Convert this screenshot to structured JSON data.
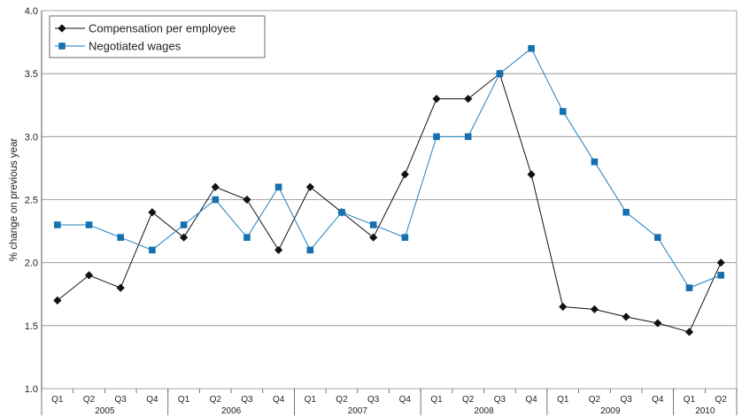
{
  "chart_data": {
    "type": "line",
    "ylabel": "% change on previous year",
    "ylim": [
      1.0,
      4.0
    ],
    "yticks": [
      1.0,
      1.5,
      2.0,
      2.5,
      3.0,
      3.5,
      4.0
    ],
    "ytick_labels": [
      "1.0",
      "1.5",
      "2.0",
      "2.5",
      "3.0",
      "3.5",
      "4.0"
    ],
    "grid": "horizontal",
    "legend_position": "top-left",
    "categories": [
      "Q1",
      "Q2",
      "Q3",
      "Q4",
      "Q1",
      "Q2",
      "Q3",
      "Q4",
      "Q1",
      "Q2",
      "Q3",
      "Q4",
      "Q1",
      "Q2",
      "Q3",
      "Q4",
      "Q1",
      "Q2",
      "Q3",
      "Q4",
      "Q1",
      "Q2"
    ],
    "year_groups": [
      {
        "label": "2005",
        "count": 4
      },
      {
        "label": "2006",
        "count": 4
      },
      {
        "label": "2007",
        "count": 4
      },
      {
        "label": "2008",
        "count": 4
      },
      {
        "label": "2009",
        "count": 4
      },
      {
        "label": "2010",
        "count": 2
      }
    ],
    "series": [
      {
        "name": "Compensation per employee",
        "color": "#111111",
        "marker": "diamond",
        "values": [
          1.7,
          1.9,
          1.8,
          2.4,
          2.2,
          2.6,
          2.5,
          2.1,
          2.6,
          2.4,
          2.2,
          2.7,
          3.3,
          3.3,
          3.5,
          2.7,
          1.65,
          1.63,
          1.57,
          1.52,
          1.45,
          2.0
        ]
      },
      {
        "name": "Negotiated wages",
        "color": "#1f7fc0",
        "marker_color": "#1670b0",
        "marker": "square",
        "values": [
          2.3,
          2.3,
          2.2,
          2.1,
          2.3,
          2.5,
          2.2,
          2.6,
          2.1,
          2.4,
          2.3,
          2.2,
          3.0,
          3.0,
          3.5,
          3.7,
          3.2,
          2.8,
          2.4,
          2.2,
          1.8,
          1.9
        ]
      }
    ]
  }
}
